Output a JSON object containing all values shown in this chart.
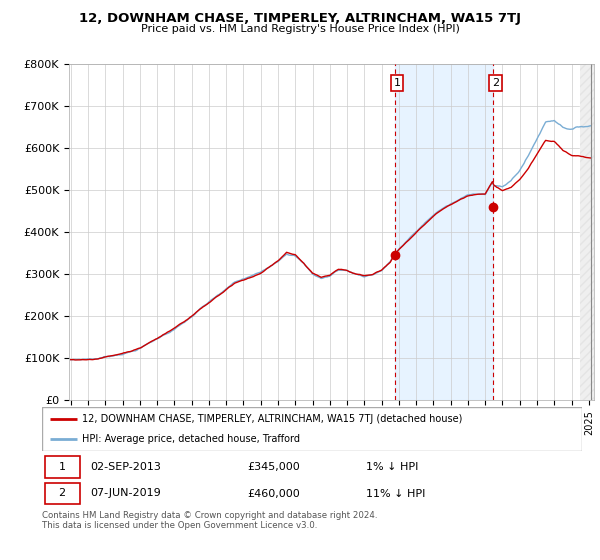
{
  "title": "12, DOWNHAM CHASE, TIMPERLEY, ALTRINCHAM, WA15 7TJ",
  "subtitle": "Price paid vs. HM Land Registry's House Price Index (HPI)",
  "ylim": [
    0,
    800000
  ],
  "yticks": [
    0,
    100000,
    200000,
    300000,
    400000,
    500000,
    600000,
    700000,
    800000
  ],
  "ytick_labels": [
    "£0",
    "£100K",
    "£200K",
    "£300K",
    "£400K",
    "£500K",
    "£600K",
    "£700K",
    "£800K"
  ],
  "hpi_color": "#7aadd4",
  "price_color": "#cc0000",
  "marker_color": "#cc0000",
  "vline_color": "#cc0000",
  "shade_color": "#ddeeff",
  "hatch_color": "#cccccc",
  "sale1_x": 2013.75,
  "sale1_y": 345000,
  "sale2_x": 2019.44,
  "sale2_y": 460000,
  "xmin": 1995.0,
  "xmax": 2025.1,
  "future_x": 2024.5,
  "legend_line1": "12, DOWNHAM CHASE, TIMPERLEY, ALTRINCHAM, WA15 7TJ (detached house)",
  "legend_line2": "HPI: Average price, detached house, Trafford",
  "footnote": "Contains HM Land Registry data © Crown copyright and database right 2024.\nThis data is licensed under the Open Government Licence v3.0.",
  "background_color": "#ffffff",
  "grid_color": "#cccccc"
}
